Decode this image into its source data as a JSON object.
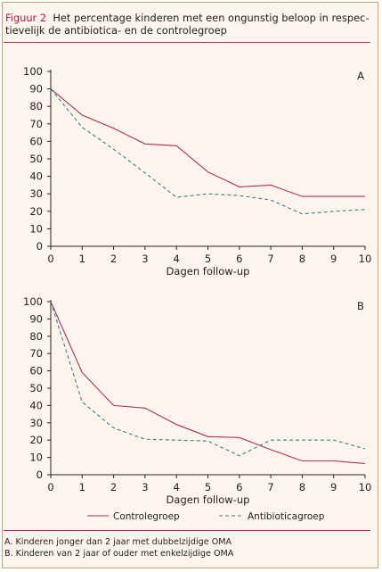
{
  "caption": {
    "figure_label": "Figuur 2",
    "title_line1": "Het percentage kinderen met een ongunstig beloop in respec-",
    "title_line2": "tievelijk de antibiotica- en de controlegroep"
  },
  "colors": {
    "controlegroep": "#a3355a",
    "antibioticagroep": "#3b7c8c",
    "axis": "#222222",
    "background": "#fdf5ec",
    "border": "#c9a07a"
  },
  "legend": {
    "items": [
      {
        "key": "controlegroep",
        "label": "Controlegroep"
      },
      {
        "key": "antibioticagroep",
        "label": "Antibioticagroep"
      }
    ]
  },
  "footnotes": [
    "A. Kinderen jonger dan 2 jaar met dubbelzijdige OMA",
    "B. Kinderen van 2 jaar of ouder met enkelzijdige OMA"
  ],
  "chart_data": [
    {
      "type": "line",
      "panel_label": "A",
      "xlabel": "Dagen follow-up",
      "ylabel": "",
      "x": [
        0,
        1,
        2,
        3,
        4,
        5,
        6,
        7,
        8,
        9,
        10
      ],
      "xlim": [
        0,
        10
      ],
      "ylim": [
        0,
        100
      ],
      "xticks": [
        "0",
        "1",
        "2",
        "3",
        "4",
        "5",
        "6",
        "7",
        "8",
        "9",
        "10"
      ],
      "yticks": [
        "0",
        "10",
        "20",
        "30",
        "40",
        "50",
        "60",
        "70",
        "80",
        "90",
        "100"
      ],
      "grid": false,
      "series": [
        {
          "name": "Controlegroep",
          "style": "solid",
          "color": "#a3355a",
          "values": [
            90,
            75,
            67.5,
            58.5,
            57.5,
            42.5,
            34,
            35,
            28.5,
            28.5,
            28.5
          ]
        },
        {
          "name": "Antibioticagroep",
          "style": "dashed",
          "color": "#3b7c8c",
          "values": [
            90,
            68,
            55.5,
            42,
            28,
            30,
            29,
            26.5,
            18.5,
            20,
            21
          ]
        }
      ]
    },
    {
      "type": "line",
      "panel_label": "B",
      "xlabel": "Dagen follow-up",
      "ylabel": "",
      "x": [
        0,
        1,
        2,
        3,
        4,
        5,
        6,
        7,
        8,
        9,
        10
      ],
      "xlim": [
        0,
        10
      ],
      "ylim": [
        0,
        100
      ],
      "xticks": [
        "0",
        "1",
        "2",
        "3",
        "4",
        "5",
        "6",
        "7",
        "8",
        "9",
        "10"
      ],
      "yticks": [
        "0",
        "10",
        "20",
        "30",
        "40",
        "50",
        "60",
        "70",
        "80",
        "90",
        "100"
      ],
      "grid": false,
      "series": [
        {
          "name": "Controlegroep",
          "style": "solid",
          "color": "#a3355a",
          "values": [
            100,
            59,
            40,
            38.5,
            29,
            22,
            21.5,
            14.5,
            8,
            8,
            6.5
          ]
        },
        {
          "name": "Antibioticagroep",
          "style": "dashed",
          "color": "#3b7c8c",
          "values": [
            100,
            42,
            27,
            20.5,
            20,
            19.5,
            11,
            20,
            20,
            20,
            15
          ]
        }
      ]
    }
  ]
}
